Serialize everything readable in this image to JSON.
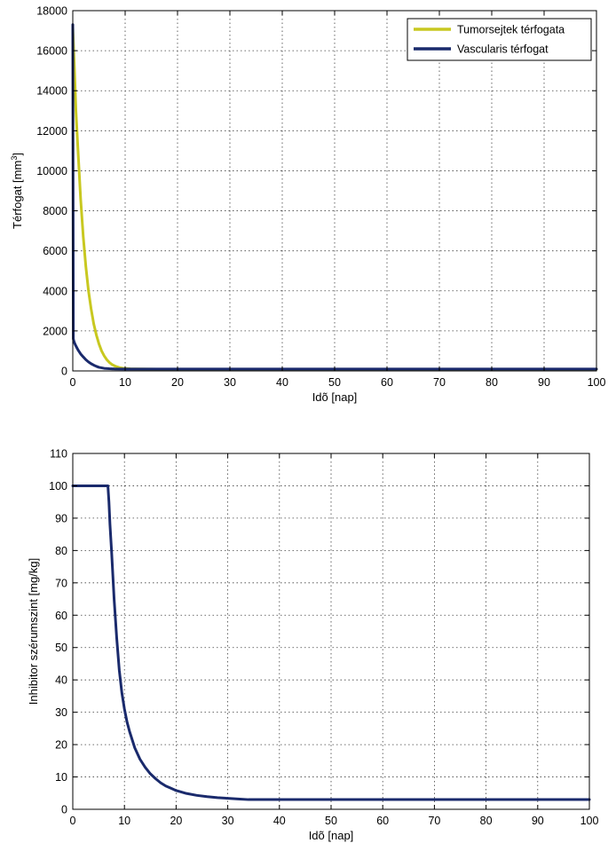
{
  "chart_data": [
    {
      "type": "line",
      "xlabel": "Idõ [nap]",
      "ylabel": "Térfogat [mm",
      "ylabel_sup": "3",
      "ylabel_tail": "]",
      "xlim": [
        0,
        100
      ],
      "ylim": [
        0,
        18000
      ],
      "xticks": [
        0,
        10,
        20,
        30,
        40,
        50,
        60,
        70,
        80,
        90,
        100
      ],
      "yticks": [
        0,
        2000,
        4000,
        6000,
        8000,
        10000,
        12000,
        14000,
        16000,
        18000
      ],
      "grid": true,
      "legend_position": "top-right",
      "series": [
        {
          "name": "Tumorsejtek térfogata",
          "color": "#c8c820",
          "x": [
            0.0,
            0.3,
            0.6,
            1.0,
            1.5,
            2.0,
            2.5,
            3.0,
            3.5,
            4.0,
            4.5,
            5.0,
            5.5,
            6.0,
            6.5,
            7.0,
            7.5,
            8.0,
            8.5,
            9.0,
            9.5,
            10.0,
            10.5,
            11.0,
            12.0,
            14.0,
            16.0,
            18.0,
            20.0,
            30.0,
            40.0,
            50.0,
            60.0,
            70.0,
            80.0,
            90.0,
            100.0
          ],
          "y": [
            17200,
            15200,
            13000,
            11000,
            8600,
            6700,
            5200,
            4000,
            3100,
            2350,
            1800,
            1350,
            1000,
            750,
            560,
            420,
            320,
            250,
            200,
            160,
            140,
            125,
            115,
            105,
            100,
            95,
            90,
            90,
            90,
            90,
            90,
            90,
            90,
            90,
            90,
            90,
            90
          ]
        },
        {
          "name": "Vascularis térfogat",
          "color": "#1a2a6c",
          "x": [
            0.0,
            0.1,
            0.2,
            0.3,
            0.5,
            1.0,
            1.5,
            2.0,
            2.5,
            3.0,
            3.5,
            4.0,
            4.5,
            5.0,
            6.0,
            7.0,
            8.0,
            10.0,
            12.0,
            15.0,
            18.0,
            20.0,
            30.0,
            40.0,
            50.0,
            60.0,
            70.0,
            80.0,
            90.0,
            100.0
          ],
          "y": [
            17300,
            1600,
            1500,
            1420,
            1300,
            1050,
            850,
            700,
            560,
            450,
            360,
            290,
            230,
            180,
            130,
            110,
            100,
            95,
            95,
            95,
            95,
            95,
            95,
            95,
            95,
            95,
            95,
            95,
            95,
            95
          ]
        }
      ]
    },
    {
      "type": "line",
      "xlabel": "Idõ [nap]",
      "ylabel": "Inhibitor szérumszint [mg/kg]",
      "xlim": [
        0,
        100
      ],
      "ylim": [
        0,
        110
      ],
      "xticks": [
        0,
        10,
        20,
        30,
        40,
        50,
        60,
        70,
        80,
        90,
        100
      ],
      "yticks": [
        0,
        10,
        20,
        30,
        40,
        50,
        60,
        70,
        80,
        90,
        100,
        110
      ],
      "grid": true,
      "series": [
        {
          "color": "#1a2a6c",
          "x": [
            0.0,
            6.8,
            7.0,
            7.2,
            7.5,
            8.0,
            8.5,
            9.0,
            9.5,
            10.0,
            10.5,
            11.0,
            12.0,
            13.0,
            14.0,
            15.0,
            16.0,
            17.0,
            18.0,
            19.0,
            20.0,
            22.0,
            24.0,
            26.0,
            28.0,
            30.0,
            32.0,
            34.0,
            40.0,
            50.0,
            60.0,
            70.0,
            80.0,
            90.0,
            100.0
          ],
          "y": [
            100,
            100,
            95,
            88,
            80,
            65,
            53,
            43,
            36,
            31,
            27,
            24,
            19,
            15.5,
            13,
            11,
            9.5,
            8.2,
            7.2,
            6.5,
            5.8,
            4.9,
            4.3,
            3.9,
            3.6,
            3.4,
            3.2,
            3.0,
            3.0,
            3.0,
            3.0,
            3.0,
            3.0,
            3.0,
            3.0
          ]
        }
      ]
    }
  ]
}
